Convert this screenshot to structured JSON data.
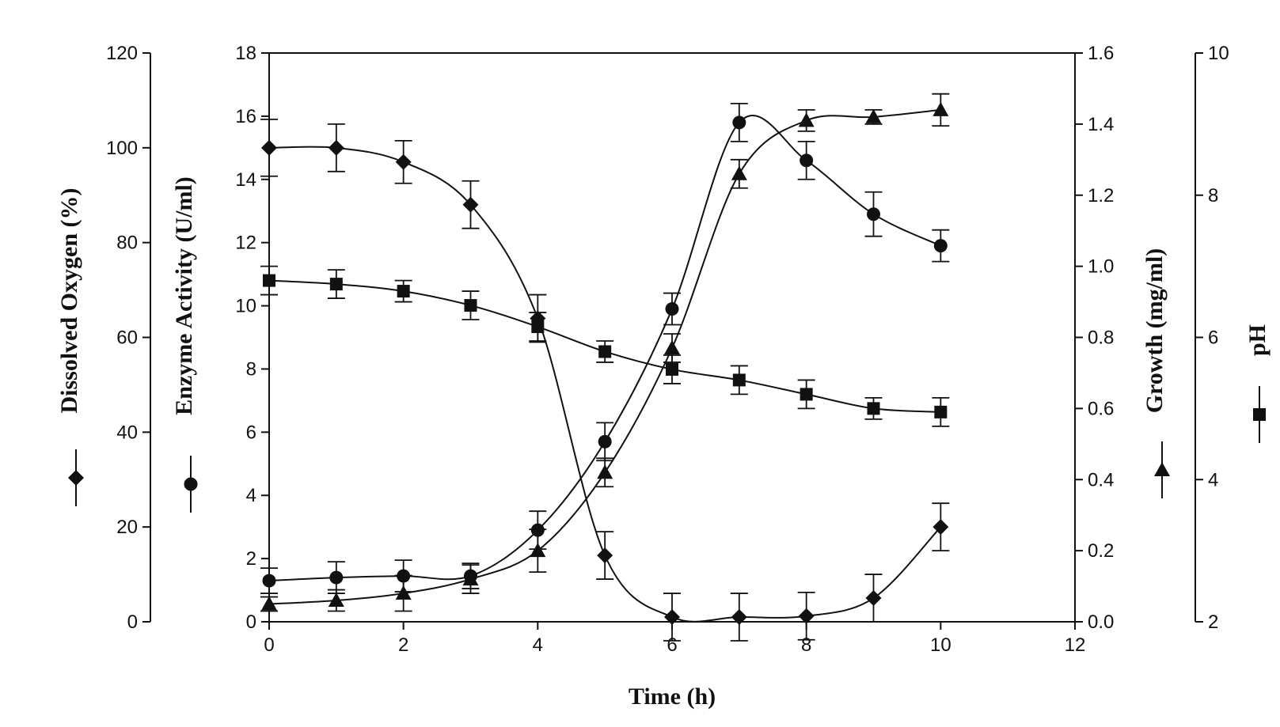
{
  "chart_data": {
    "type": "line",
    "title": "",
    "xlabel": "Time (h)",
    "xlim": [
      0,
      12
    ],
    "xticks": [
      0,
      2,
      4,
      6,
      8,
      10,
      12
    ],
    "grid": false,
    "axes": [
      {
        "id": "do",
        "label": "Dissolved Oxygen (%)",
        "lim": [
          0,
          120
        ],
        "ticks": [
          0,
          20,
          40,
          60,
          80,
          100,
          120
        ],
        "decimals": 0,
        "side": "left",
        "marker": "diamond"
      },
      {
        "id": "enzyme",
        "label": "Enzyme Activity (U/ml)",
        "lim": [
          0,
          18
        ],
        "ticks": [
          0,
          2,
          4,
          6,
          8,
          10,
          12,
          14,
          16,
          18
        ],
        "decimals": 0,
        "side": "left",
        "marker": "circle"
      },
      {
        "id": "growth",
        "label": "Growth (mg/ml)",
        "lim": [
          0,
          1.6
        ],
        "ticks": [
          0,
          0.2,
          0.4,
          0.6,
          0.8,
          1.0,
          1.2,
          1.4,
          1.6
        ],
        "decimals": 1,
        "side": "right",
        "marker": "triangle"
      },
      {
        "id": "ph",
        "label": "pH",
        "lim": [
          2,
          10
        ],
        "ticks": [
          2,
          4,
          6,
          8,
          10
        ],
        "decimals": 0,
        "side": "right",
        "marker": "square"
      }
    ],
    "x": [
      0,
      1,
      2,
      3,
      4,
      5,
      6,
      7,
      8,
      9,
      10
    ],
    "series": [
      {
        "axis": "do",
        "marker": "diamond",
        "values": [
          100,
          100,
          97,
          88,
          64,
          14,
          1,
          1,
          1.2,
          5,
          20
        ],
        "errors": [
          6,
          5,
          4.5,
          5,
          5,
          5,
          5,
          5,
          5,
          5,
          5
        ]
      },
      {
        "axis": "enzyme",
        "marker": "circle",
        "values": [
          1.3,
          1.4,
          1.45,
          1.45,
          2.9,
          5.7,
          9.9,
          15.8,
          14.6,
          12.9,
          11.9
        ],
        "errors": [
          0.4,
          0.5,
          0.5,
          0.4,
          0.6,
          0.6,
          0.5,
          0.6,
          0.6,
          0.7,
          0.5
        ]
      },
      {
        "axis": "growth",
        "marker": "triangle",
        "values": [
          0.05,
          0.06,
          0.08,
          0.12,
          0.2,
          0.42,
          0.77,
          1.26,
          1.41,
          1.42,
          1.44
        ],
        "errors": [
          0.02,
          0.03,
          0.05,
          0.04,
          0.06,
          0.04,
          0.04,
          0.04,
          0.03,
          0.02,
          0.045
        ]
      },
      {
        "axis": "ph",
        "marker": "square",
        "values": [
          6.8,
          6.75,
          6.65,
          6.45,
          6.15,
          5.8,
          5.55,
          5.4,
          5.2,
          5.0,
          4.95
        ],
        "errors": [
          0.2,
          0.2,
          0.15,
          0.2,
          0.2,
          0.15,
          0.2,
          0.2,
          0.2,
          0.15,
          0.2
        ]
      }
    ]
  }
}
